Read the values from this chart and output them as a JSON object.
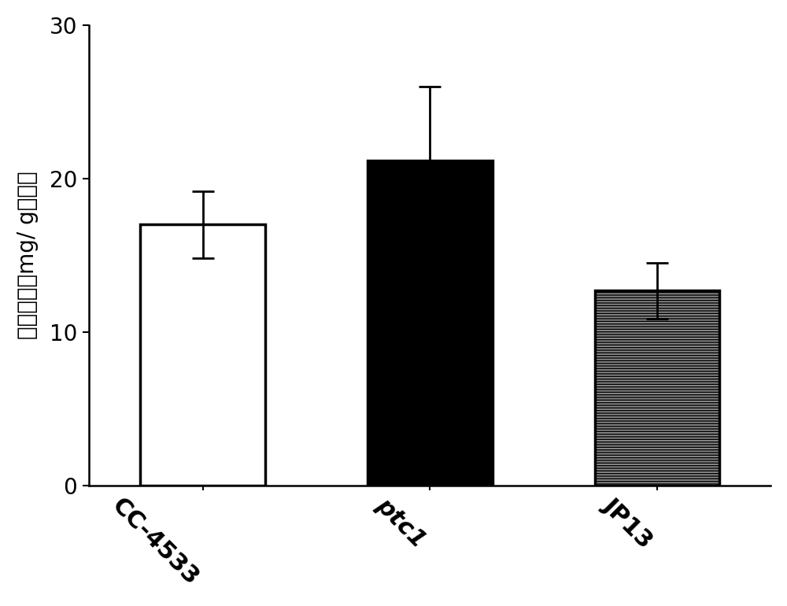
{
  "categories": [
    "CC-4533",
    "ptc1",
    "JP13"
  ],
  "values": [
    17.0,
    21.2,
    12.7
  ],
  "errors": [
    2.2,
    4.8,
    1.8
  ],
  "bar_colors": [
    "white",
    "black",
    "#888888"
  ],
  "bar_edgecolor": "black",
  "bar_linewidth": 2.5,
  "ylabel": "总磷含量（mg/ g干重）",
  "ylim": [
    0,
    30
  ],
  "yticks": [
    0,
    10,
    20,
    30
  ],
  "capsize": 10,
  "error_linewidth": 2.0,
  "bar_width": 0.55,
  "ylabel_fontsize": 20,
  "tick_fontsize": 20,
  "xlabel_fontsize": 22,
  "background_color": "#ffffff",
  "hatches": [
    null,
    null,
    "-----"
  ],
  "label_rotation": -45,
  "label_fontweight": "bold"
}
